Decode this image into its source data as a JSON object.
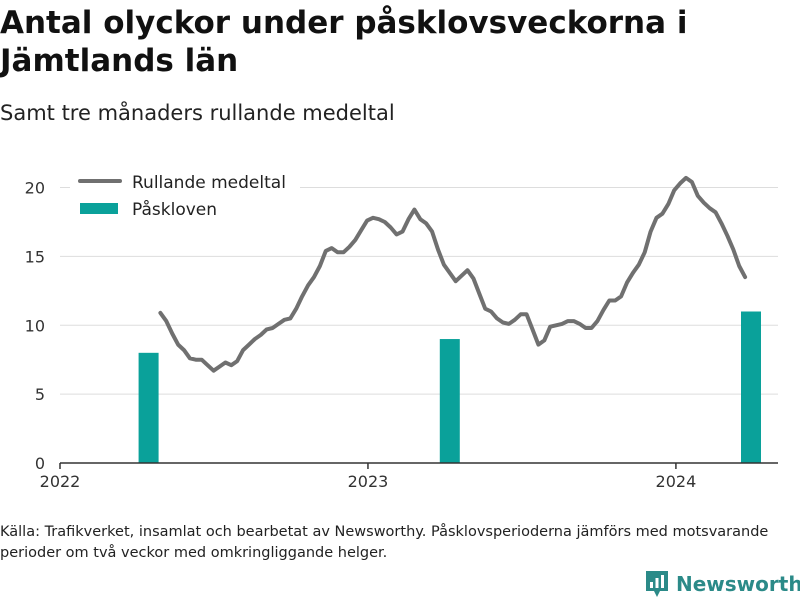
{
  "header": {
    "title": "Antal olyckor under påsklovsveckorna i Jämtlands län",
    "subtitle": "Samt tre månaders rullande medeltal"
  },
  "footer": {
    "source": "Källa: Trafikverket, insamlat och bearbetat av Newsworthy. Påsklovsperioderna jämförs med motsvarande perioder om två veckor med omkringliggande helger.",
    "brand": "Newsworthy"
  },
  "colors": {
    "line": "#707070",
    "bar": "#0aa19a",
    "brand": "#2b8a88",
    "grid": "#dddddd"
  },
  "chart_data": {
    "type": "bar",
    "title": "Antal olyckor under påsklovsveckorna i Jämtlands län",
    "subtitle": "Samt tre månaders rullande medeltal",
    "xlim": [
      "2022-01-01",
      "2024-05-01"
    ],
    "ylim": [
      0,
      22
    ],
    "yticks": [
      0,
      5,
      10,
      15,
      20
    ],
    "xticks": [
      {
        "date": "2022-01-01",
        "label": "2022"
      },
      {
        "date": "2023-01-01",
        "label": "2023"
      },
      {
        "date": "2024-01-01",
        "label": "2024"
      }
    ],
    "grid": true,
    "legend_position": "top-left",
    "series": [
      {
        "name": "Rullande medeltal",
        "type": "line",
        "color": "#707070",
        "points": [
          [
            "2022-04-30",
            10.9
          ],
          [
            "2022-05-07",
            10.3
          ],
          [
            "2022-05-14",
            9.4
          ],
          [
            "2022-05-21",
            8.6
          ],
          [
            "2022-05-28",
            8.2
          ],
          [
            "2022-06-04",
            7.6
          ],
          [
            "2022-06-11",
            7.5
          ],
          [
            "2022-06-18",
            7.5
          ],
          [
            "2022-06-25",
            7.1
          ],
          [
            "2022-07-02",
            6.7
          ],
          [
            "2022-07-09",
            7.0
          ],
          [
            "2022-07-16",
            7.3
          ],
          [
            "2022-07-23",
            7.1
          ],
          [
            "2022-07-30",
            7.4
          ],
          [
            "2022-08-06",
            8.2
          ],
          [
            "2022-08-13",
            8.6
          ],
          [
            "2022-08-20",
            9.0
          ],
          [
            "2022-08-27",
            9.3
          ],
          [
            "2022-09-03",
            9.7
          ],
          [
            "2022-09-10",
            9.8
          ],
          [
            "2022-09-17",
            10.1
          ],
          [
            "2022-09-24",
            10.4
          ],
          [
            "2022-10-01",
            10.5
          ],
          [
            "2022-10-08",
            11.2
          ],
          [
            "2022-10-15",
            12.1
          ],
          [
            "2022-10-22",
            12.9
          ],
          [
            "2022-10-29",
            13.5
          ],
          [
            "2022-11-05",
            14.3
          ],
          [
            "2022-11-12",
            15.4
          ],
          [
            "2022-11-19",
            15.6
          ],
          [
            "2022-11-26",
            15.3
          ],
          [
            "2022-12-03",
            15.3
          ],
          [
            "2022-12-10",
            15.7
          ],
          [
            "2022-12-17",
            16.2
          ],
          [
            "2022-12-24",
            16.9
          ],
          [
            "2022-12-31",
            17.6
          ],
          [
            "2023-01-07",
            17.8
          ],
          [
            "2023-01-14",
            17.7
          ],
          [
            "2023-01-21",
            17.5
          ],
          [
            "2023-01-28",
            17.1
          ],
          [
            "2023-02-04",
            16.6
          ],
          [
            "2023-02-11",
            16.8
          ],
          [
            "2023-02-18",
            17.7
          ],
          [
            "2023-02-25",
            18.4
          ],
          [
            "2023-03-04",
            17.7
          ],
          [
            "2023-03-11",
            17.4
          ],
          [
            "2023-03-18",
            16.8
          ],
          [
            "2023-03-25",
            15.5
          ],
          [
            "2023-04-01",
            14.4
          ],
          [
            "2023-04-08",
            13.8
          ],
          [
            "2023-04-15",
            13.2
          ],
          [
            "2023-04-22",
            13.6
          ],
          [
            "2023-04-29",
            14.0
          ],
          [
            "2023-05-06",
            13.4
          ],
          [
            "2023-05-13",
            12.3
          ],
          [
            "2023-05-20",
            11.2
          ],
          [
            "2023-05-27",
            11.0
          ],
          [
            "2023-06-03",
            10.5
          ],
          [
            "2023-06-10",
            10.2
          ],
          [
            "2023-06-17",
            10.1
          ],
          [
            "2023-06-24",
            10.4
          ],
          [
            "2023-07-01",
            10.8
          ],
          [
            "2023-07-08",
            10.8
          ],
          [
            "2023-07-15",
            9.7
          ],
          [
            "2023-07-22",
            8.6
          ],
          [
            "2023-07-29",
            8.9
          ],
          [
            "2023-08-05",
            9.9
          ],
          [
            "2023-08-12",
            10.0
          ],
          [
            "2023-08-19",
            10.1
          ],
          [
            "2023-08-26",
            10.3
          ],
          [
            "2023-09-02",
            10.3
          ],
          [
            "2023-09-09",
            10.1
          ],
          [
            "2023-09-16",
            9.8
          ],
          [
            "2023-09-23",
            9.8
          ],
          [
            "2023-09-30",
            10.3
          ],
          [
            "2023-10-07",
            11.1
          ],
          [
            "2023-10-14",
            11.8
          ],
          [
            "2023-10-21",
            11.8
          ],
          [
            "2023-10-28",
            12.1
          ],
          [
            "2023-11-04",
            13.1
          ],
          [
            "2023-11-11",
            13.8
          ],
          [
            "2023-11-18",
            14.4
          ],
          [
            "2023-11-25",
            15.3
          ],
          [
            "2023-12-02",
            16.8
          ],
          [
            "2023-12-09",
            17.8
          ],
          [
            "2023-12-16",
            18.1
          ],
          [
            "2023-12-23",
            18.8
          ],
          [
            "2023-12-30",
            19.8
          ],
          [
            "2024-01-06",
            20.3
          ],
          [
            "2024-01-13",
            20.7
          ],
          [
            "2024-01-20",
            20.4
          ],
          [
            "2024-01-27",
            19.4
          ],
          [
            "2024-02-03",
            18.9
          ],
          [
            "2024-02-10",
            18.5
          ],
          [
            "2024-02-17",
            18.2
          ],
          [
            "2024-02-24",
            17.4
          ],
          [
            "2024-03-02",
            16.5
          ],
          [
            "2024-03-09",
            15.5
          ],
          [
            "2024-03-16",
            14.3
          ],
          [
            "2024-03-23",
            13.5
          ]
        ]
      },
      {
        "name": "Påskloven",
        "type": "bar",
        "color": "#0aa19a",
        "points": [
          [
            "2022-04-16",
            8
          ],
          [
            "2023-04-08",
            9
          ],
          [
            "2024-03-30",
            11
          ]
        ]
      }
    ]
  }
}
